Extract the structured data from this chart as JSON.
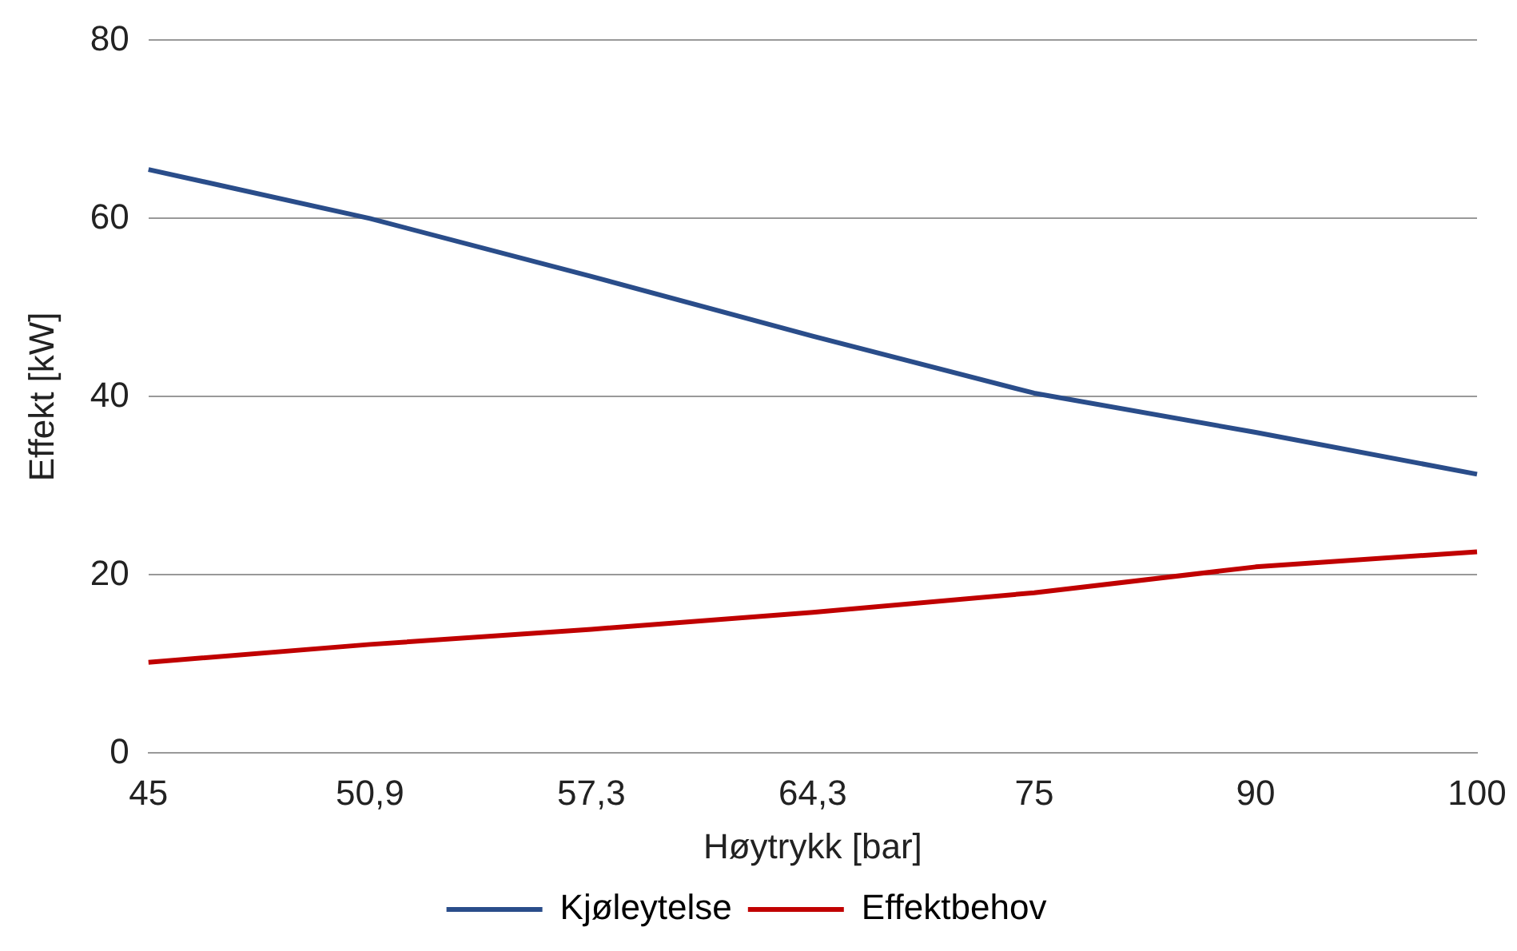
{
  "chart_data": {
    "type": "line",
    "xlabel": "Høytrykk [bar]",
    "ylabel": "Effekt [kW]",
    "categories": [
      "45",
      "50,9",
      "57,3",
      "64,3",
      "75",
      "90",
      "100"
    ],
    "series": [
      {
        "name": "Kjøleytelse",
        "color": "#2a4d8a",
        "values": [
          65.5,
          60,
          53.5,
          46.8,
          40.4,
          36,
          31.3
        ]
      },
      {
        "name": "Effektbehov",
        "color": "#c00000",
        "values": [
          10.2,
          12.2,
          13.9,
          15.8,
          18,
          20.9,
          22.6
        ]
      }
    ],
    "ylim": [
      0,
      80
    ],
    "yticks": [
      0,
      20,
      40,
      60,
      80
    ],
    "grid": "y",
    "legend": "bottom",
    "marker": "none",
    "line_style": "solid"
  }
}
